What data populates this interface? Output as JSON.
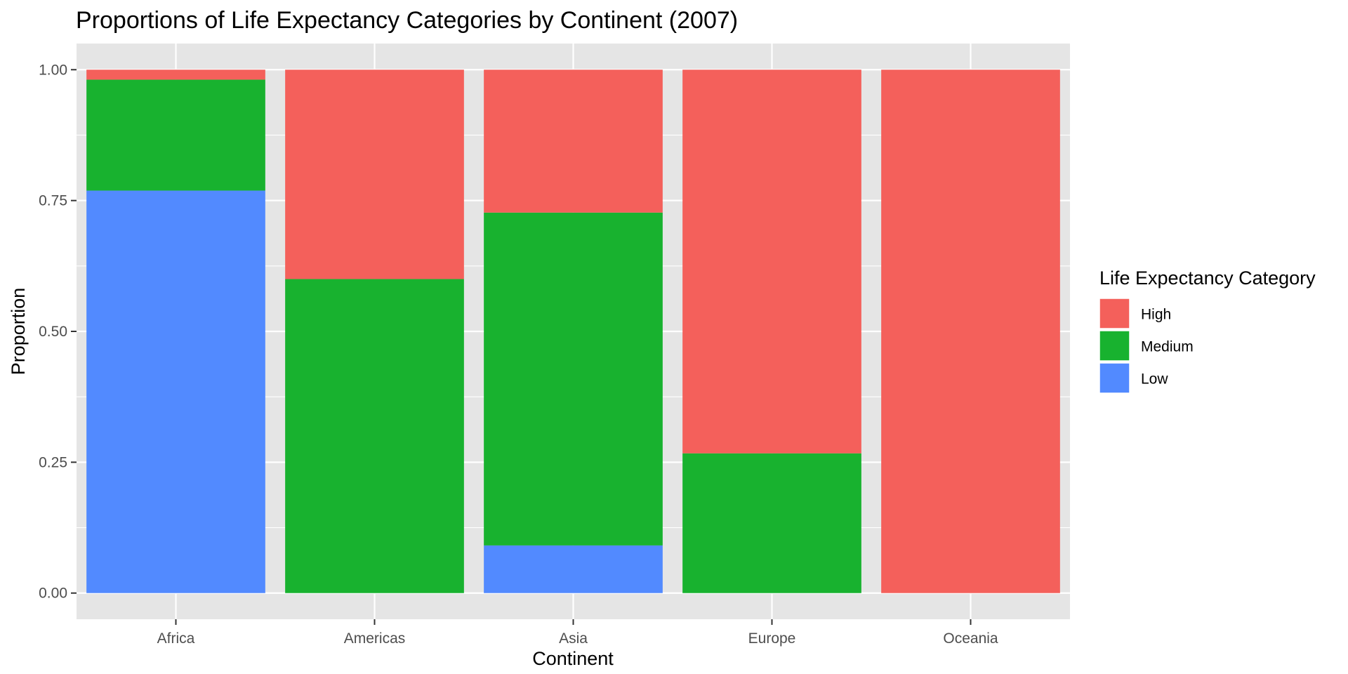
{
  "chart_data": {
    "type": "bar",
    "stacked": true,
    "title": "Proportions of Life Expectancy Categories by Continent (2007)",
    "xlabel": "Continent",
    "ylabel": "Proportion",
    "categories": [
      "Africa",
      "Americas",
      "Asia",
      "Europe",
      "Oceania"
    ],
    "series": [
      {
        "name": "Low",
        "color": "#528AFF",
        "values": [
          0.769,
          0.0,
          0.091,
          0.0,
          0.0
        ]
      },
      {
        "name": "Medium",
        "color": "#18B22F",
        "values": [
          0.212,
          0.6,
          0.636,
          0.267,
          0.0
        ]
      },
      {
        "name": "High",
        "color": "#F4605B",
        "values": [
          0.019,
          0.4,
          0.273,
          0.733,
          1.0
        ]
      }
    ],
    "ylim": [
      -0.05,
      1.05
    ],
    "yticks": [
      0.0,
      0.25,
      0.5,
      0.75,
      1.0
    ],
    "ytick_labels": [
      "0.00",
      "0.25",
      "0.50",
      "0.75",
      "1.00"
    ],
    "grid": true,
    "legend": {
      "title": "Life Expectancy Category",
      "position": "right",
      "order": [
        "High",
        "Medium",
        "Low"
      ]
    },
    "colors": {
      "panel_background": "#E5E5E5",
      "grid": "#FFFFFF"
    }
  }
}
